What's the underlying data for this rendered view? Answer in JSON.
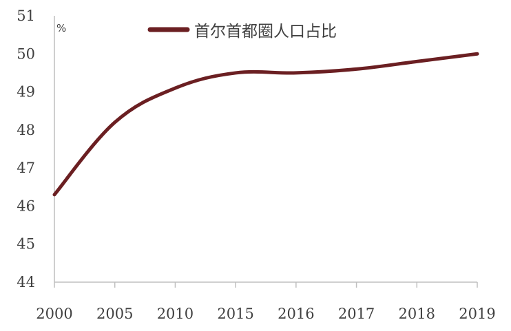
{
  "chart_data": {
    "type": "line",
    "categories": [
      "2000",
      "2005",
      "2010",
      "2015",
      "2016",
      "2017",
      "2018",
      "2019"
    ],
    "series": [
      {
        "name": "首尔首都圈人口占比",
        "values": [
          46.3,
          48.2,
          49.1,
          49.5,
          49.5,
          49.6,
          49.8,
          50.0
        ],
        "color": "#6b1f22"
      }
    ],
    "ylim": [
      44,
      51
    ],
    "yticks": [
      44,
      45,
      46,
      47,
      48,
      49,
      50,
      51
    ],
    "yunit": "%",
    "legend_position": "top",
    "grid": false
  }
}
